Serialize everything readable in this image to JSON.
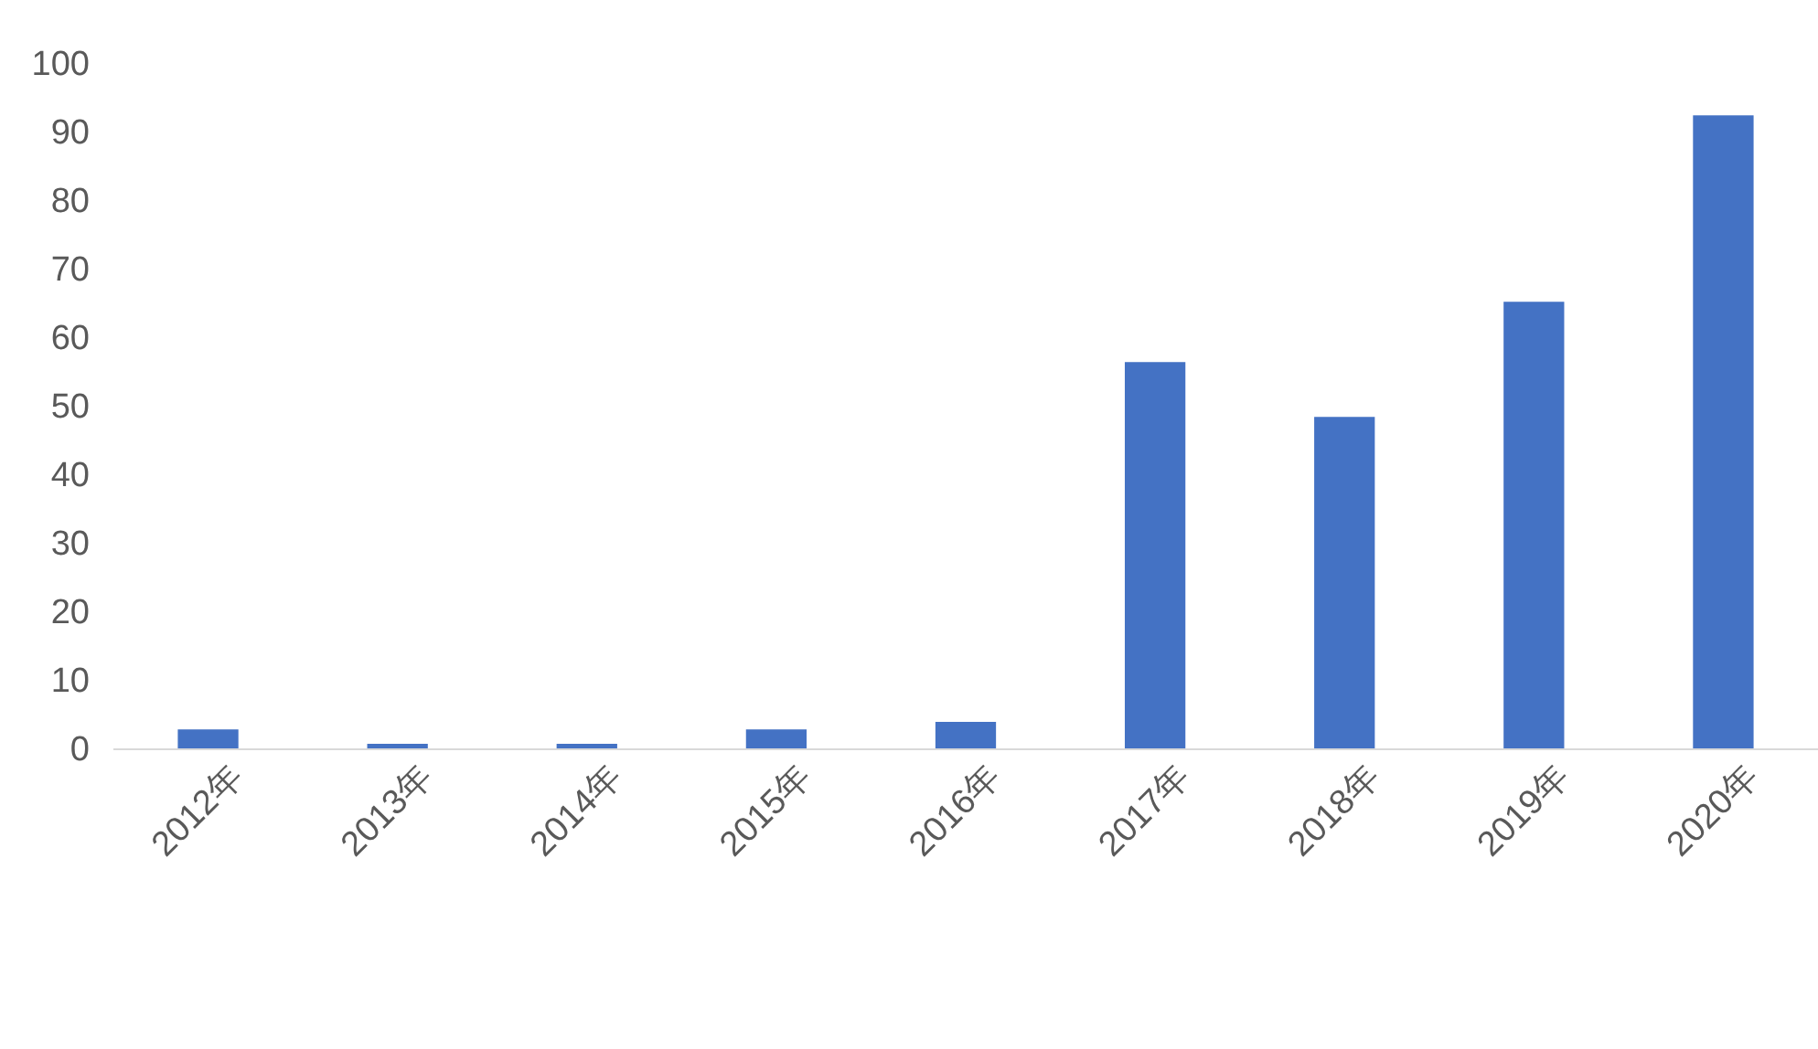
{
  "chart_data": {
    "type": "bar",
    "categories": [
      "2012年",
      "2013年",
      "2014年",
      "2015年",
      "2016年",
      "2017年",
      "2018年",
      "2019年",
      "2020年"
    ],
    "values": [
      2.9,
      0.8,
      0.8,
      2.9,
      4,
      56.5,
      48.5,
      65.3,
      92.5
    ],
    "color": "#4472c4",
    "ylim": [
      0,
      100
    ],
    "yticks": [
      0,
      10,
      20,
      30,
      40,
      50,
      60,
      70,
      80,
      90,
      100
    ],
    "grid": false
  }
}
